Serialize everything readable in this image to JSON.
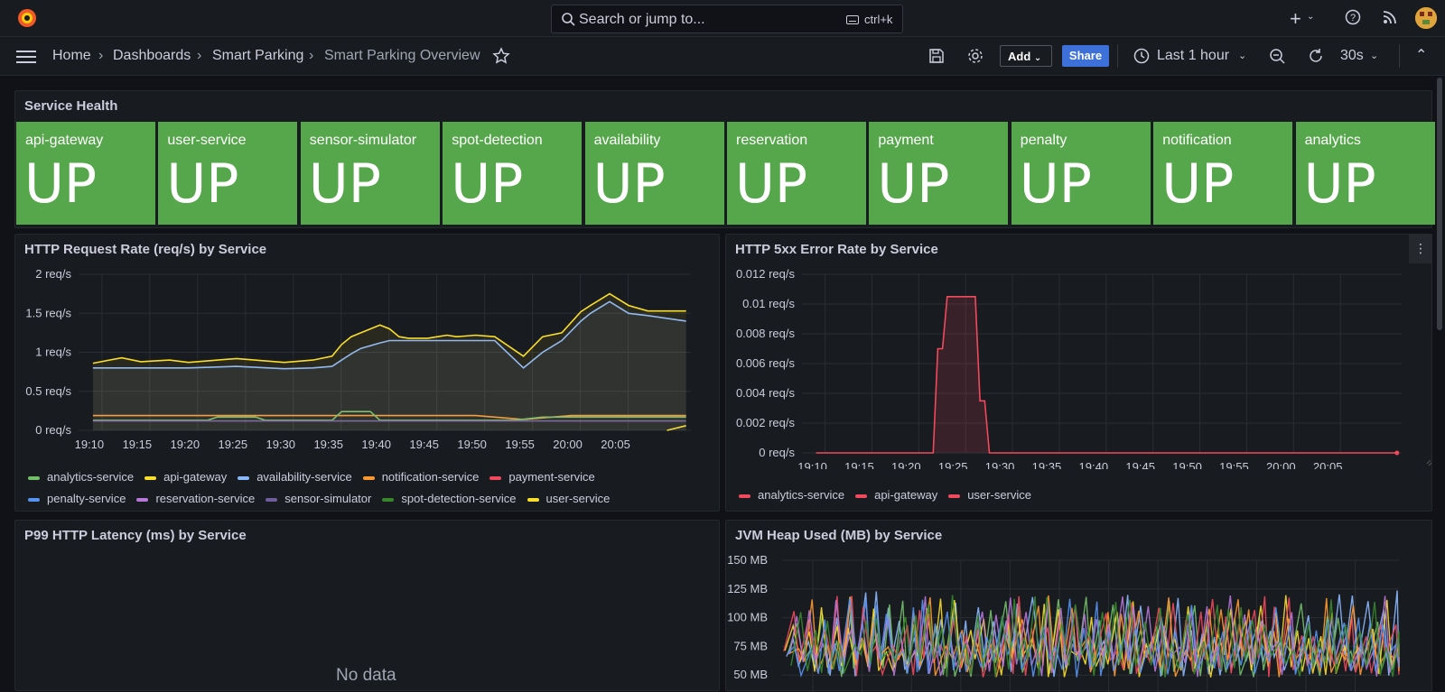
{
  "topbar": {
    "search_placeholder": "Search or jump to...",
    "search_shortcut": "ctrl+k",
    "new_icon": "plus-icon",
    "help_icon": "help-icon",
    "news_icon": "rss-icon"
  },
  "nav": {
    "breadcrumbs": [
      "Home",
      "Dashboards",
      "Smart Parking",
      "Smart Parking Overview"
    ],
    "add_label": "Add",
    "share_label": "Share",
    "time_range": "Last 1 hour",
    "refresh_interval": "30s"
  },
  "service_health": {
    "title": "Service Health",
    "tiles": [
      {
        "name": "api-gateway",
        "value": "UP"
      },
      {
        "name": "user-service",
        "value": "UP"
      },
      {
        "name": "sensor-simulator",
        "value": "UP"
      },
      {
        "name": "spot-detection",
        "value": "UP"
      },
      {
        "name": "availability",
        "value": "UP"
      },
      {
        "name": "reservation",
        "value": "UP"
      },
      {
        "name": "payment",
        "value": "UP"
      },
      {
        "name": "penalty",
        "value": "UP"
      },
      {
        "name": "notification",
        "value": "UP"
      },
      {
        "name": "analytics",
        "value": "UP"
      }
    ],
    "color": "#56a64b"
  },
  "panels": {
    "req_rate_title": "HTTP Request Rate (req/s) by Service",
    "err_rate_title": "HTTP 5xx Error Rate by Service",
    "latency_title": "P99 HTTP Latency (ms) by Service",
    "latency_nodata": "No data",
    "heap_title": "JVM Heap Used (MB) by Service"
  },
  "legends": {
    "req_rate": [
      {
        "name": "analytics-service",
        "color": "#73bf69"
      },
      {
        "name": "api-gateway",
        "color": "#fade2a"
      },
      {
        "name": "availability-service",
        "color": "#8ab8ff"
      },
      {
        "name": "notification-service",
        "color": "#ff9830"
      },
      {
        "name": "payment-service",
        "color": "#f2495c"
      },
      {
        "name": "penalty-service",
        "color": "#5794f2"
      },
      {
        "name": "reservation-service",
        "color": "#b877d9"
      },
      {
        "name": "sensor-simulator",
        "color": "#705da0"
      },
      {
        "name": "spot-detection-service",
        "color": "#37872d"
      },
      {
        "name": "user-service",
        "color": "#fade2a"
      }
    ],
    "err_rate": [
      {
        "name": "analytics-service",
        "color": "#f2495c"
      },
      {
        "name": "api-gateway",
        "color": "#f2495c"
      },
      {
        "name": "user-service",
        "color": "#f2495c"
      }
    ]
  },
  "chart_data": [
    {
      "type": "line",
      "title": "HTTP Request Rate (req/s) by Service",
      "x_ticks": [
        "19:10",
        "19:15",
        "19:20",
        "19:25",
        "19:30",
        "19:35",
        "19:40",
        "19:45",
        "19:50",
        "19:55",
        "20:00",
        "20:05"
      ],
      "y_ticks": [
        "0 req/s",
        "0.5 req/s",
        "1 req/s",
        "1.5 req/s",
        "2 req/s"
      ],
      "ylim": [
        0,
        2
      ],
      "x_minutes": [
        0,
        5,
        10,
        15,
        20,
        25,
        30,
        35,
        40,
        45,
        50,
        55,
        60
      ],
      "series": [
        {
          "name": "api-gateway",
          "color": "#fade2a",
          "x": [
            0,
            3,
            5,
            8,
            10,
            15,
            20,
            23,
            25,
            26,
            27,
            28,
            30,
            31,
            32,
            33,
            35,
            36,
            37,
            38,
            40,
            42,
            45,
            47,
            49,
            51,
            52,
            54,
            56,
            58,
            62
          ],
          "values": [
            0.86,
            0.93,
            0.88,
            0.9,
            0.87,
            0.92,
            0.87,
            0.9,
            0.95,
            1.1,
            1.2,
            1.25,
            1.35,
            1.3,
            1.2,
            1.18,
            1.18,
            1.2,
            1.22,
            1.2,
            1.22,
            1.2,
            0.95,
            1.2,
            1.25,
            1.52,
            1.6,
            1.75,
            1.6,
            1.53,
            1.53
          ]
        },
        {
          "name": "availability-service",
          "color": "#8ab8ff",
          "x": [
            0,
            3,
            5,
            8,
            10,
            15,
            20,
            23,
            25,
            26,
            27,
            28,
            30,
            31,
            32,
            33,
            35,
            36,
            37,
            38,
            40,
            42,
            45,
            47,
            49,
            51,
            52,
            54,
            56,
            58,
            62
          ],
          "values": [
            0.8,
            0.8,
            0.8,
            0.8,
            0.8,
            0.82,
            0.79,
            0.8,
            0.82,
            0.9,
            0.98,
            1.05,
            1.12,
            1.15,
            1.15,
            1.15,
            1.15,
            1.15,
            1.15,
            1.15,
            1.15,
            1.15,
            0.8,
            1.0,
            1.15,
            1.4,
            1.5,
            1.65,
            1.5,
            1.47,
            1.4
          ]
        },
        {
          "name": "notification-service",
          "color": "#ff9830",
          "x": [
            0,
            20,
            40,
            45,
            50,
            62
          ],
          "values": [
            0.19,
            0.19,
            0.19,
            0.14,
            0.19,
            0.19
          ]
        },
        {
          "name": "analytics-service",
          "color": "#73bf69",
          "x": [
            0,
            12,
            13,
            17,
            18,
            25,
            26,
            29,
            30,
            40,
            44,
            47,
            62
          ],
          "values": [
            0.13,
            0.13,
            0.17,
            0.17,
            0.13,
            0.13,
            0.24,
            0.24,
            0.13,
            0.13,
            0.13,
            0.17,
            0.17
          ]
        },
        {
          "name": "sensor-simulator",
          "color": "#705da0",
          "x": [
            0,
            62
          ],
          "values": [
            0.12,
            0.12
          ]
        },
        {
          "name": "user-service",
          "color": "#fade2a",
          "x": [
            60,
            62
          ],
          "values": [
            0.0,
            0.06
          ]
        }
      ]
    },
    {
      "type": "area",
      "title": "HTTP 5xx Error Rate by Service",
      "x_ticks": [
        "19:10",
        "19:15",
        "19:20",
        "19:25",
        "19:30",
        "19:35",
        "19:40",
        "19:45",
        "19:50",
        "19:55",
        "20:00",
        "20:05"
      ],
      "y_ticks": [
        "0 req/s",
        "0.002 req/s",
        "0.004 req/s",
        "0.006 req/s",
        "0.008 req/s",
        "0.01 req/s",
        "0.012 req/s"
      ],
      "ylim": [
        0,
        0.012
      ],
      "series": [
        {
          "name": "api-gateway",
          "color": "#f2495c",
          "x": [
            0,
            12.5,
            13,
            13.5,
            14,
            15,
            16,
            17,
            17.5,
            18,
            18.5,
            19,
            62
          ],
          "values": [
            0,
            0,
            0.007,
            0.007,
            0.0105,
            0.0105,
            0.0105,
            0.0105,
            0.0035,
            0.0035,
            0,
            0,
            0
          ]
        }
      ]
    },
    {
      "type": "line",
      "title": "JVM Heap Used (MB) by Service",
      "y_ticks": [
        "50 MB",
        "75 MB",
        "100 MB",
        "125 MB",
        "150 MB"
      ],
      "ylim": [
        50,
        150
      ],
      "series_colors": [
        "#8ab8ff",
        "#73bf69",
        "#fade2a",
        "#f2495c",
        "#ff9830",
        "#b877d9",
        "#5794f2",
        "#37872d"
      ]
    }
  ]
}
